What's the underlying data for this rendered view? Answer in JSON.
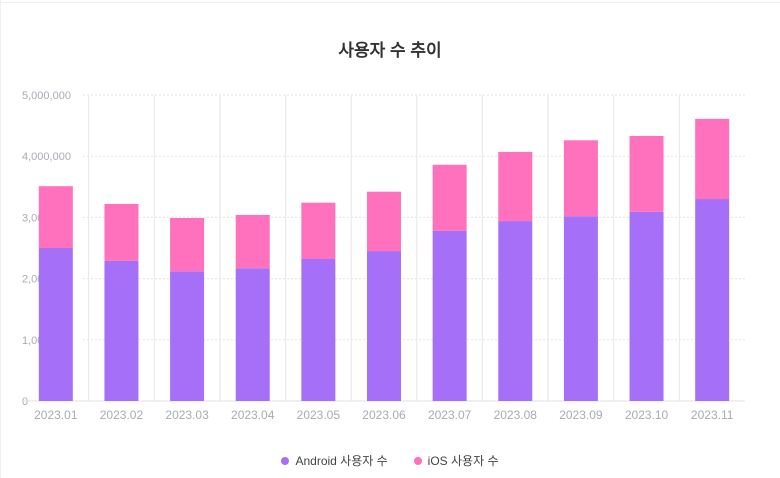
{
  "chart_data": {
    "type": "bar",
    "stacked": true,
    "title": "사용자 수 추이",
    "xlabel": "",
    "ylabel": "",
    "ylim": [
      0,
      5000000
    ],
    "yticks": [
      0,
      1000000,
      2000000,
      3000000,
      4000000,
      5000000
    ],
    "ytick_labels": [
      "0",
      "1,000,000",
      "2,000,000",
      "3,000,000",
      "4,000,000",
      "5,000,000"
    ],
    "categories": [
      "2023.01",
      "2023.02",
      "2023.03",
      "2023.04",
      "2023.05",
      "2023.06",
      "2023.07",
      "2023.08",
      "2023.09",
      "2023.10",
      "2023.11"
    ],
    "series": [
      {
        "name": "Android 사용자 수",
        "color": "#a66ff7",
        "values": [
          2500000,
          2290000,
          2120000,
          2170000,
          2320000,
          2450000,
          2780000,
          2940000,
          3020000,
          3090000,
          3300000
        ]
      },
      {
        "name": "iOS 사용자 수",
        "color": "#ff71bd",
        "values": [
          1010000,
          930000,
          870000,
          870000,
          920000,
          970000,
          1080000,
          1130000,
          1240000,
          1240000,
          1310000
        ]
      }
    ],
    "grid": true,
    "legend": "bottom-center"
  }
}
